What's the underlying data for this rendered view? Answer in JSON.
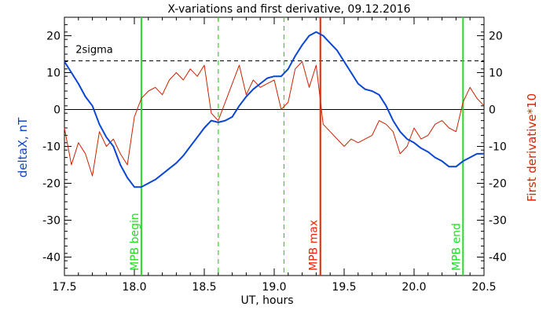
{
  "chart_data": {
    "type": "line",
    "title": "X-variations and first derivative, 09.12.2016",
    "xlabel": "UT, hours",
    "ylabel": "deltaX, nT",
    "ylabel_right": "First derivative*10",
    "xlim": [
      17.5,
      20.5
    ],
    "ylim": [
      -45,
      25
    ],
    "xticks": [
      17.5,
      18.0,
      18.5,
      19.0,
      19.5,
      20.0,
      20.5
    ],
    "xtick_labels": [
      "17.5",
      "18.0",
      "18.5",
      "19.0",
      "19.5",
      "20.0",
      "20.5"
    ],
    "yticks": [
      20,
      10,
      0,
      -10,
      -20,
      -30,
      -40
    ],
    "ytick_labels": [
      "20",
      "10",
      "0",
      "-10",
      "-20",
      "-30",
      "-40"
    ],
    "grid": false,
    "colors": {
      "deltaX": "#0a46d4",
      "derivative": "#cc2200",
      "mpb_edge": "#22dd22",
      "mpb_max": "#ee2200",
      "axis_left": "#1144cc",
      "axis_right": "#dd2200"
    },
    "series": [
      {
        "key": "deltaX",
        "x": [
          17.5,
          17.55,
          17.6,
          17.65,
          17.7,
          17.75,
          17.8,
          17.85,
          17.9,
          17.95,
          18.0,
          18.05,
          18.1,
          18.15,
          18.2,
          18.25,
          18.3,
          18.35,
          18.4,
          18.45,
          18.5,
          18.55,
          18.6,
          18.65,
          18.7,
          18.75,
          18.8,
          18.85,
          18.9,
          18.95,
          19.0,
          19.05,
          19.1,
          19.15,
          19.2,
          19.25,
          19.3,
          19.35,
          19.4,
          19.45,
          19.5,
          19.55,
          19.6,
          19.65,
          19.7,
          19.75,
          19.8,
          19.85,
          19.9,
          19.95,
          20.0,
          20.05,
          20.1,
          20.15,
          20.2,
          20.25,
          20.3,
          20.35,
          20.4,
          20.45,
          20.5
        ],
        "values": [
          13,
          10,
          7,
          3.5,
          1,
          -4,
          -7.5,
          -10,
          -15,
          -18.5,
          -21,
          -21,
          -20,
          -19,
          -17.5,
          -16,
          -14.5,
          -12.5,
          -10,
          -7.5,
          -5,
          -3,
          -3.5,
          -3,
          -2,
          1,
          3.5,
          5.5,
          7,
          8.5,
          9,
          9,
          11,
          14.5,
          17.5,
          20,
          21,
          20,
          18,
          16,
          13,
          10,
          7,
          5.5,
          5,
          4,
          1,
          -3,
          -6,
          -8,
          -9,
          -10.5,
          -11.5,
          -13,
          -14,
          -15.5,
          -15.5,
          -14,
          -13,
          -12,
          -12
        ]
      },
      {
        "key": "derivative",
        "x": [
          17.5,
          17.55,
          17.6,
          17.65,
          17.7,
          17.75,
          17.8,
          17.85,
          17.9,
          17.95,
          18.0,
          18.05,
          18.1,
          18.15,
          18.2,
          18.25,
          18.3,
          18.35,
          18.4,
          18.45,
          18.5,
          18.55,
          18.6,
          18.65,
          18.7,
          18.75,
          18.8,
          18.85,
          18.9,
          18.95,
          19.0,
          19.05,
          19.1,
          19.15,
          19.2,
          19.25,
          19.3,
          19.35,
          19.4,
          19.45,
          19.5,
          19.55,
          19.6,
          19.65,
          19.7,
          19.75,
          19.8,
          19.85,
          19.9,
          19.95,
          20.0,
          20.05,
          20.1,
          20.15,
          20.2,
          20.25,
          20.3,
          20.35,
          20.4,
          20.45,
          20.5
        ],
        "values": [
          -5,
          -15,
          -9,
          -12,
          -18,
          -6,
          -10,
          -8,
          -12,
          -15,
          -2,
          3,
          5,
          6,
          4,
          8,
          10,
          8,
          11,
          9,
          12,
          -1,
          -3,
          2,
          7,
          12,
          4,
          8,
          6,
          7,
          8,
          0,
          2,
          11,
          13,
          6,
          12,
          -4,
          -6,
          -8,
          -10,
          -8,
          -9,
          -8,
          -7,
          -3,
          -4,
          -6,
          -12,
          -10,
          -5,
          -8,
          -7,
          -4,
          -3,
          -5,
          -6,
          2,
          6,
          3,
          1
        ]
      }
    ],
    "reference_lines": {
      "sigma_label": "2sigma",
      "sigma_value": 13.2,
      "zero_value": 0,
      "mpb_begin_x": 18.05,
      "mpb_max_x": 19.33,
      "mpb_end_x": 20.35,
      "dashed_x": [
        18.6,
        19.07
      ]
    },
    "annotations": {
      "mpb_begin": "MPB begin",
      "mpb_max": "MPB max",
      "mpb_end": "MPB end"
    }
  }
}
